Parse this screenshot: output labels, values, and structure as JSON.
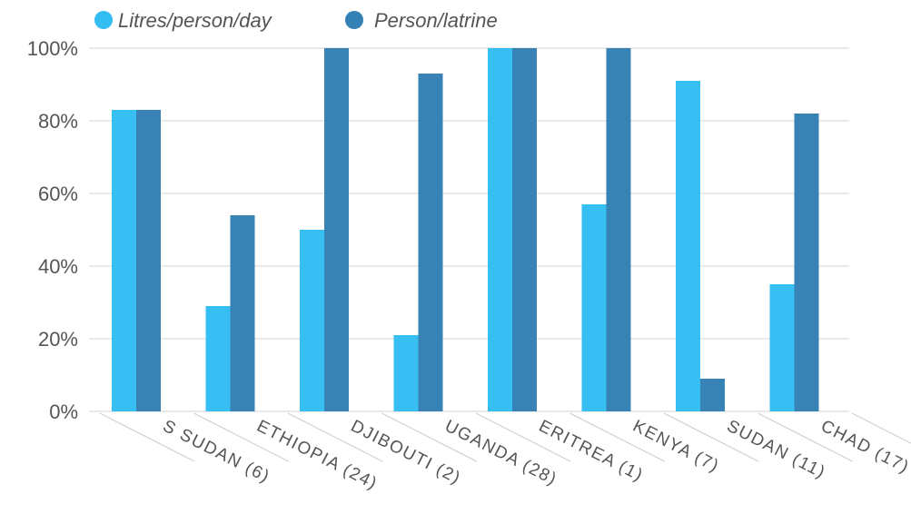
{
  "chart_data": {
    "type": "bar",
    "categories": [
      "S SUDAN (6)",
      "ETHIOPIA (24)",
      "DJIBOUTI (2)",
      "UGANDA (28)",
      "ERITREA (1)",
      "KENYA (7)",
      "SUDAN (11)",
      "CHAD (17)"
    ],
    "series": [
      {
        "name": "Litres/person/day",
        "color": "#33bdf2",
        "values": [
          83,
          29,
          50,
          21,
          100,
          57,
          91,
          35
        ]
      },
      {
        "name": "Person/latrine",
        "color": "#3381b5",
        "values": [
          83,
          54,
          100,
          93,
          100,
          100,
          9,
          82
        ]
      }
    ],
    "y_ticks": [
      "0%",
      "20%",
      "40%",
      "60%",
      "80%",
      "100%"
    ],
    "ylim": [
      0,
      100
    ],
    "grid": true,
    "legend_position": "top-left",
    "title": "",
    "xlabel": "",
    "ylabel": ""
  }
}
